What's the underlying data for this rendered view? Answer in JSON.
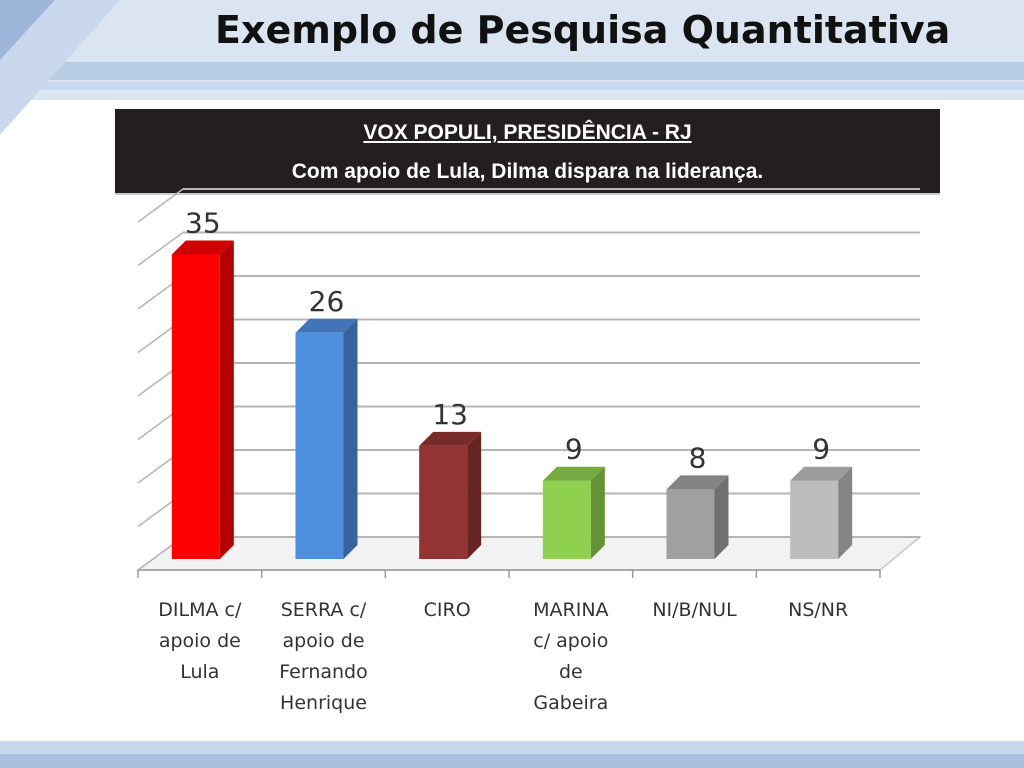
{
  "slide": {
    "title": "Exemplo de Pesquisa Quantitativa"
  },
  "chart_data": {
    "type": "bar",
    "title": "VOX POPULI, PRESIDÊNCIA - RJ",
    "subtitle": "Com apoio de Lula, Dilma dispara na liderança.",
    "categories": [
      "DILMA c/ apoio de Lula",
      "SERRA c/ apoio de Fernando Henrique",
      "CIRO",
      "MARINA c/ apoio de Gabeira",
      "NI/B/NUL",
      "NS/NR"
    ],
    "category_lines": [
      [
        "DILMA c/",
        "apoio de",
        "Lula"
      ],
      [
        "SERRA c/",
        "apoio de",
        "Fernando",
        "Henrique"
      ],
      [
        "CIRO"
      ],
      [
        "MARINA",
        "c/ apoio",
        "de",
        "Gabeira"
      ],
      [
        "NI/B/NUL"
      ],
      [
        "NS/NR"
      ]
    ],
    "values": [
      35,
      26,
      13,
      9,
      8,
      9
    ],
    "value_labels": [
      "35",
      "26",
      "13",
      "9",
      "8",
      "9"
    ],
    "colors": [
      "#ff0000",
      "#4f8fe0",
      "#933333",
      "#8fd14f",
      "#a0a0a0",
      "#bdbdbd"
    ],
    "ylim": [
      0,
      40
    ],
    "grid": true,
    "xlabel": "",
    "ylabel": ""
  }
}
